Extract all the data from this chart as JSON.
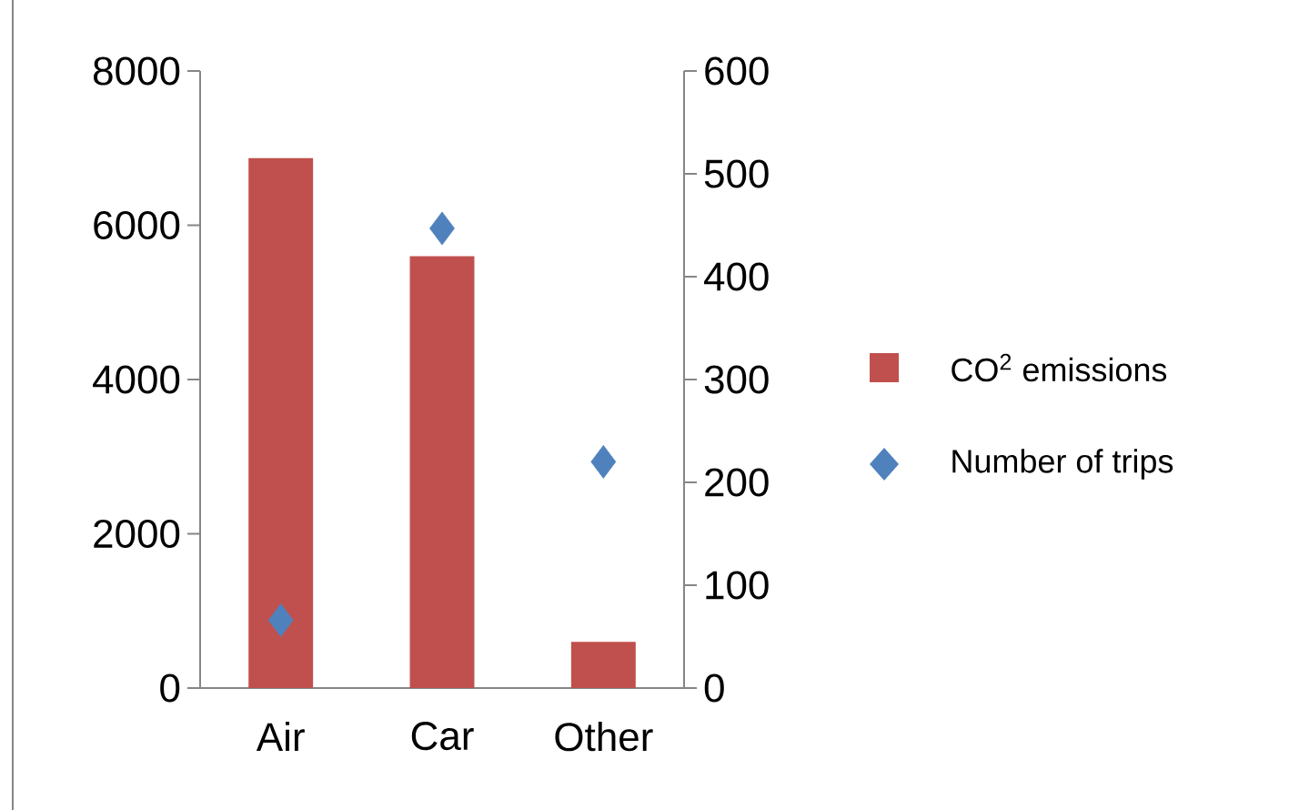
{
  "chart_data": {
    "type": "bar",
    "categories": [
      "Air",
      "Car",
      "Other"
    ],
    "series": [
      {
        "name": "CO$^{2}$ emissions",
        "color": "#c0504d",
        "values": [
          6870,
          5600,
          600
        ]
      },
      {
        "name": "Number of trips",
        "type": "scatter",
        "axis": "y2",
        "marker": "diamond",
        "color": "#4f81bd",
        "values": [
          66,
          447,
          220
        ]
      }
    ],
    "ylim": [
      0,
      8000
    ],
    "yticks": [
      0,
      2000,
      4000,
      6000,
      8000
    ],
    "y2lim": [
      0,
      600
    ],
    "y2ticks": [
      0,
      100,
      200,
      300,
      400,
      500,
      600
    ],
    "legend": "right",
    "grid": false
  }
}
